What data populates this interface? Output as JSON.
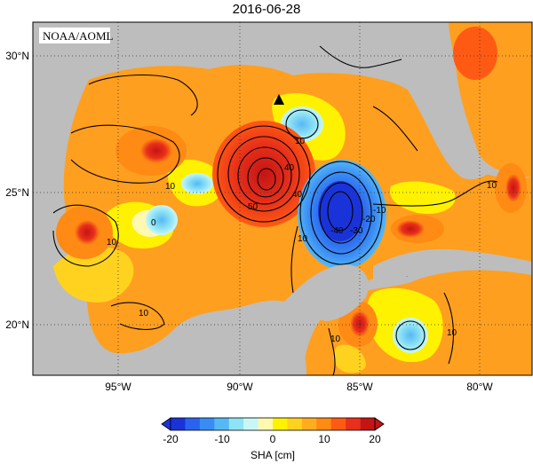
{
  "title": "2016-06-28",
  "credit": "NOAA/AOML",
  "lat_labels": [
    "30°N",
    "25°N",
    "20°N"
  ],
  "lon_labels": [
    "95°W",
    "90°W",
    "85°W",
    "80°W"
  ],
  "contour_labels": [
    "10",
    "0",
    "10",
    "10",
    "50",
    "40",
    "40",
    "10",
    "10",
    "-40",
    "-30",
    "-20",
    "-10",
    "10",
    "10",
    "10",
    "0"
  ],
  "colorbar": {
    "label": "SHA [cm]",
    "ticks": [
      "-20",
      "-10",
      "0",
      "10",
      "20"
    ],
    "colors": [
      "#1a33d9",
      "#2a63ee",
      "#3a8cf5",
      "#56b8f5",
      "#8fe3f5",
      "#c9f7f7",
      "#fff8b0",
      "#fff200",
      "#ffd21f",
      "#ffad1f",
      "#ff8a14",
      "#ff5a14",
      "#e8301a",
      "#c41414"
    ]
  },
  "marker": "triangle-marker",
  "land_color": "#bdbdbd"
}
